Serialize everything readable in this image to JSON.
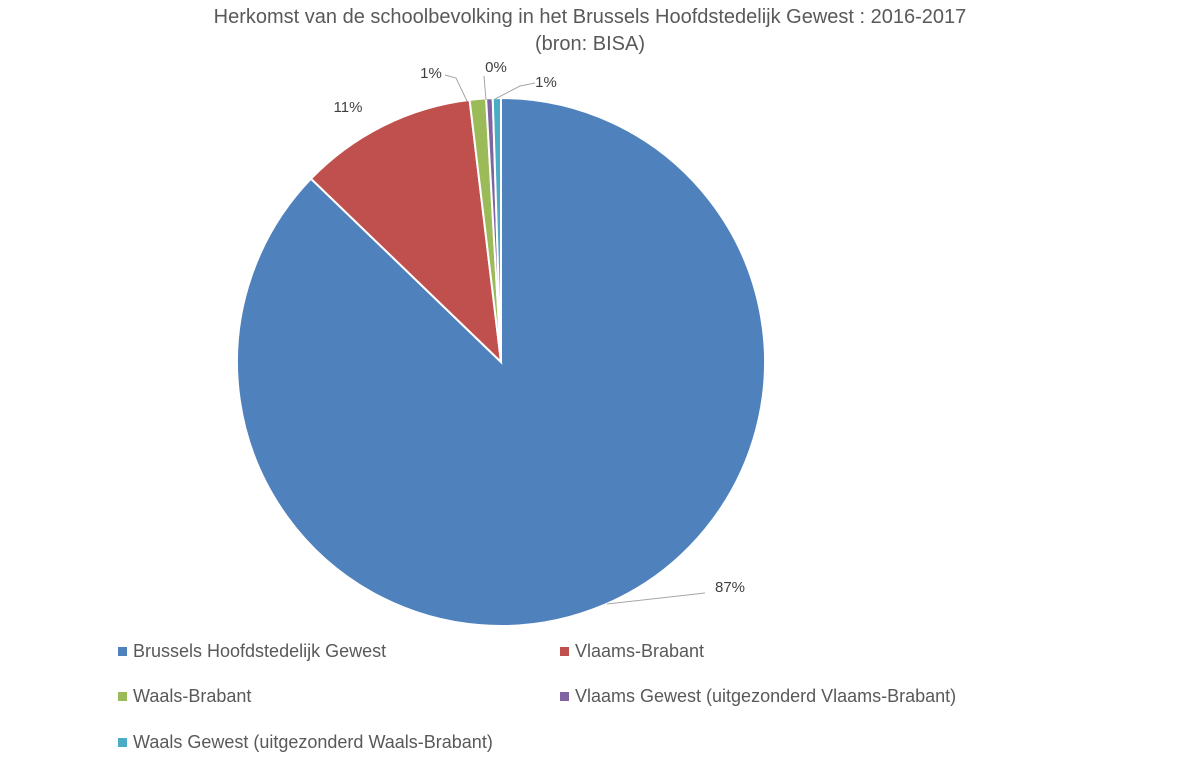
{
  "chart_data": {
    "type": "pie",
    "title": "Herkomst van de schoolbevolking in het Brussels Hoofdstedelijk Gewest : 2016-2017",
    "subtitle": "(bron: BISA)",
    "legend_position": "bottom",
    "slices": [
      {
        "name": "Brussels Hoofdstedelijk Gewest",
        "value": 87.3,
        "label": "87%",
        "color": "#4f81bd"
      },
      {
        "name": "Vlaams-Brabant",
        "value": 10.9,
        "label": "11%",
        "color": "#c0504d"
      },
      {
        "name": "Waals-Brabant",
        "value": 1.0,
        "label": "1%",
        "color": "#9bbb59"
      },
      {
        "name": "Vlaams Gewest (uitgezonderd Vlaams-Brabant)",
        "value": 0.4,
        "label": "0%",
        "color": "#8064a2"
      },
      {
        "name": "Waals Gewest (uitgezonderd Waals-Brabant)",
        "value": 0.5,
        "label": "1%",
        "color": "#4bacc6"
      }
    ]
  }
}
